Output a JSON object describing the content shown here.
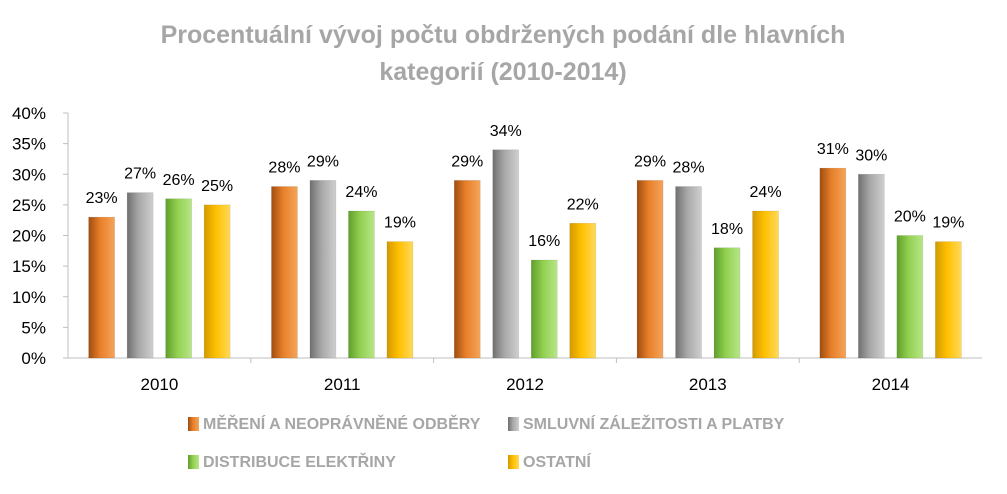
{
  "chart_data": {
    "type": "bar",
    "title_lines": [
      "Procentuální vývoj počtu obdržených podání dle hlavních",
      "kategorií (2010-2014)"
    ],
    "categories": [
      "2010",
      "2011",
      "2012",
      "2013",
      "2014"
    ],
    "ylim": [
      0,
      40
    ],
    "yticks": [
      "0%",
      "5%",
      "10%",
      "15%",
      "20%",
      "25%",
      "30%",
      "35%",
      "40%"
    ],
    "grid": false,
    "legend_position": "bottom",
    "series": [
      {
        "name": "MĚŘENÍ A NEOPRÁVNĚNÉ ODBĚRY",
        "color": "#e07a24",
        "values": [
          23,
          28,
          29,
          29,
          31
        ],
        "labels": [
          "23%",
          "28%",
          "29%",
          "29%",
          "31%"
        ]
      },
      {
        "name": "SMLUVNÍ ZÁLEŽITOSTI A PLATBY",
        "color": "#a6a6a6",
        "values": [
          27,
          29,
          34,
          28,
          30
        ],
        "labels": [
          "27%",
          "29%",
          "34%",
          "28%",
          "30%"
        ]
      },
      {
        "name": "DISTRIBUCE ELEKTŘINY",
        "color": "#92d050",
        "values": [
          26,
          24,
          16,
          18,
          20
        ],
        "labels": [
          "26%",
          "24%",
          "16%",
          "18%",
          "20%"
        ]
      },
      {
        "name": "OSTATNÍ",
        "color": "#ffc000",
        "values": [
          25,
          19,
          22,
          24,
          19
        ],
        "labels": [
          "25%",
          "19%",
          "22%",
          "24%",
          "19%"
        ]
      }
    ]
  }
}
